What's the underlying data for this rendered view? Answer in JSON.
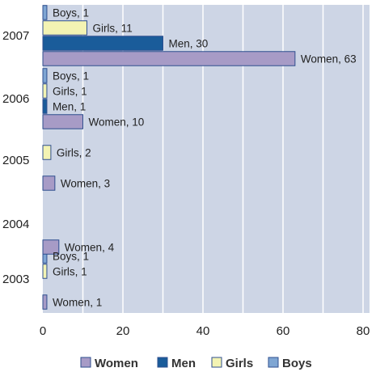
{
  "chart_data": {
    "type": "bar",
    "orientation": "horizontal",
    "title": "",
    "xlabel": "",
    "ylabel": "",
    "xlim": [
      0,
      82
    ],
    "x_ticks": [
      "0",
      "20",
      "40",
      "60",
      "80"
    ],
    "grid": true,
    "legend_placement": "bottom",
    "categories": [
      "2003",
      "2004",
      "2005",
      "2006",
      "2007"
    ],
    "series": [
      {
        "name": "Women",
        "color": "#a79bc6",
        "values": [
          1,
          4,
          3,
          10,
          63
        ],
        "labels": [
          "Women, 1",
          "Women, 4",
          "Women, 3",
          "Women, 10",
          "Women, 63"
        ]
      },
      {
        "name": "Men",
        "color": "#1a5c9a",
        "values": [
          0,
          0,
          0,
          1,
          30
        ],
        "labels": [
          "",
          "",
          "",
          "Men, 1",
          "Men, 30"
        ]
      },
      {
        "name": "Girls",
        "color": "#f3f3b3",
        "values": [
          1,
          0,
          2,
          1,
          11
        ],
        "labels": [
          "Girls, 1",
          "",
          "Girls, 2",
          "Girls, 1",
          "Girls, 11"
        ]
      },
      {
        "name": "Boys",
        "color": "#7fa6d3",
        "values": [
          1,
          0,
          0,
          1,
          1
        ],
        "labels": [
          "Boys, 1",
          "",
          "",
          "Boys, 1",
          "Boys, 1"
        ]
      }
    ]
  }
}
